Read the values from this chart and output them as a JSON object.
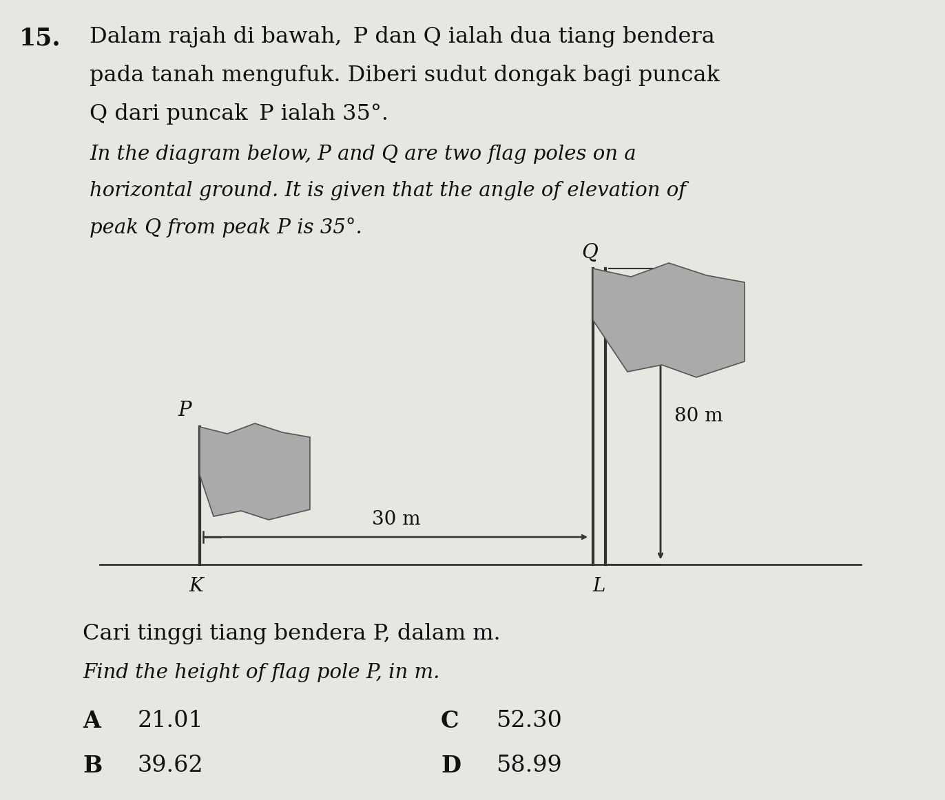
{
  "background_color": "#e8e6e0",
  "question_number": "15.",
  "malay_line1": "Dalam rajah di bawah, ",
  "malay_P1": "P",
  "malay_mid1": " dan ",
  "malay_Q1": "Q",
  "malay_end1": " ialah dua tiang bendera",
  "malay_line2": "pada tanah mengufuk. Diberi sudut dongak bagi puncak",
  "malay_line3": "Q dari puncak P ialah 35°.",
  "eng_line1": "In the diagram below, P and Q are two flag poles on a",
  "eng_line2": "horizontal ground. It is given that the angle of elevation of",
  "eng_line3": "peak Q from peak P is 35°.",
  "label_K": "K",
  "label_L": "L",
  "label_P": "P",
  "label_Q": "Q",
  "label_30m": "30 m",
  "label_80m": "80 m",
  "q_line1": "Cari tinggi tiang bendera P, dalam m.",
  "q_line2": "Find the height of flag pole P, in m.",
  "opt_A_label": "A",
  "opt_A_val": "21.01",
  "opt_B_label": "B",
  "opt_B_val": "39.62",
  "opt_C_label": "C",
  "opt_C_val": "52.30",
  "opt_D_label": "D",
  "opt_D_val": "58.99",
  "text_color": "#111111",
  "pole_color": "#333333",
  "flag_color": "#aaaaaa",
  "flag_edge": "#555555"
}
